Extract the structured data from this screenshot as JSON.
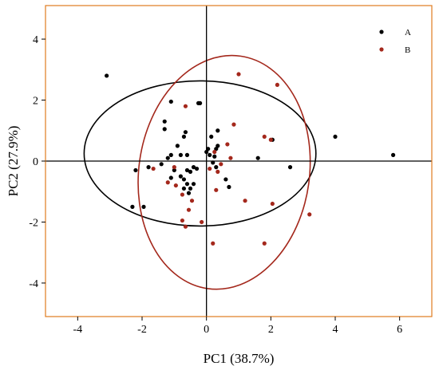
{
  "chart_data": {
    "type": "scatter",
    "title": "",
    "xlabel": "PC1 (38.7%)",
    "ylabel": "PC2 (27.9%)",
    "xlim": [
      -5,
      7
    ],
    "ylim": [
      -5.1,
      5.1
    ],
    "xticks": [
      -4,
      -2,
      0,
      2,
      4,
      6
    ],
    "yticks": [
      -4,
      -2,
      0,
      2,
      4
    ],
    "grid": false,
    "legend": "top-right",
    "colors": {
      "frame": "#e07b1f",
      "A": "#000000",
      "B": "#a4281c",
      "ellipse_A": "#000000",
      "ellipse_B": "#a4281c"
    },
    "series": [
      {
        "name": "A",
        "points": [
          [
            -3.1,
            2.8
          ],
          [
            -1.1,
            1.95
          ],
          [
            -1.3,
            1.3
          ],
          [
            -1.3,
            1.05
          ],
          [
            -0.25,
            1.9
          ],
          [
            -0.2,
            1.9
          ],
          [
            -0.65,
            0.95
          ],
          [
            -0.7,
            0.8
          ],
          [
            -0.9,
            0.5
          ],
          [
            -1.1,
            0.2
          ],
          [
            -0.8,
            0.2
          ],
          [
            -0.6,
            0.2
          ],
          [
            -1.2,
            0.1
          ],
          [
            -1.4,
            -0.1
          ],
          [
            -1.0,
            -0.3
          ],
          [
            -0.6,
            -0.3
          ],
          [
            -0.5,
            -0.35
          ],
          [
            -0.4,
            -0.2
          ],
          [
            -0.3,
            -0.25
          ],
          [
            -0.8,
            -0.5
          ],
          [
            -0.7,
            -0.6
          ],
          [
            -1.1,
            -0.55
          ],
          [
            -0.6,
            -0.75
          ],
          [
            -0.5,
            -0.9
          ],
          [
            -0.7,
            -0.9
          ],
          [
            -0.55,
            -1.05
          ],
          [
            -0.4,
            -0.75
          ],
          [
            -1.8,
            -0.2
          ],
          [
            -2.2,
            -0.3
          ],
          [
            -2.3,
            -1.5
          ],
          [
            -1.95,
            -1.5
          ],
          [
            0.0,
            0.3
          ],
          [
            0.05,
            0.4
          ],
          [
            0.1,
            0.2
          ],
          [
            0.15,
            0.8
          ],
          [
            0.2,
            -0.05
          ],
          [
            0.25,
            0.15
          ],
          [
            0.3,
            0.4
          ],
          [
            0.3,
            -0.2
          ],
          [
            0.35,
            0.5
          ],
          [
            0.35,
            1.0
          ],
          [
            0.6,
            -0.6
          ],
          [
            0.7,
            -0.85
          ],
          [
            1.6,
            0.1
          ],
          [
            2.05,
            0.7
          ],
          [
            2.6,
            -0.2
          ],
          [
            4.0,
            0.8
          ],
          [
            5.8,
            0.2
          ]
        ]
      },
      {
        "name": "B",
        "points": [
          [
            1.0,
            2.85
          ],
          [
            2.2,
            2.5
          ],
          [
            -0.65,
            1.8
          ],
          [
            0.85,
            1.2
          ],
          [
            1.8,
            0.8
          ],
          [
            2.0,
            0.7
          ],
          [
            0.65,
            0.55
          ],
          [
            0.25,
            0.3
          ],
          [
            0.75,
            0.1
          ],
          [
            0.45,
            -0.1
          ],
          [
            0.1,
            -0.25
          ],
          [
            0.35,
            -0.35
          ],
          [
            0.3,
            -0.95
          ],
          [
            -1.0,
            -0.2
          ],
          [
            -1.2,
            -0.7
          ],
          [
            -1.65,
            -0.25
          ],
          [
            -0.95,
            -0.8
          ],
          [
            -0.75,
            -1.1
          ],
          [
            -0.45,
            -1.3
          ],
          [
            -0.55,
            -1.6
          ],
          [
            -0.75,
            -1.95
          ],
          [
            -0.65,
            -2.15
          ],
          [
            -0.15,
            -2.0
          ],
          [
            0.2,
            -2.7
          ],
          [
            1.2,
            -1.3
          ],
          [
            2.05,
            -1.4
          ],
          [
            3.2,
            -1.75
          ],
          [
            1.8,
            -2.7
          ]
        ]
      }
    ],
    "ellipses": [
      {
        "series": "A",
        "center": [
          -0.2,
          0.25
        ],
        "rx": 3.6,
        "ry": 2.38,
        "angle_deg": 0
      },
      {
        "series": "B",
        "center": [
          0.55,
          -0.37
        ],
        "rx": 2.65,
        "ry": 3.85,
        "angle_deg": -8
      }
    ]
  }
}
